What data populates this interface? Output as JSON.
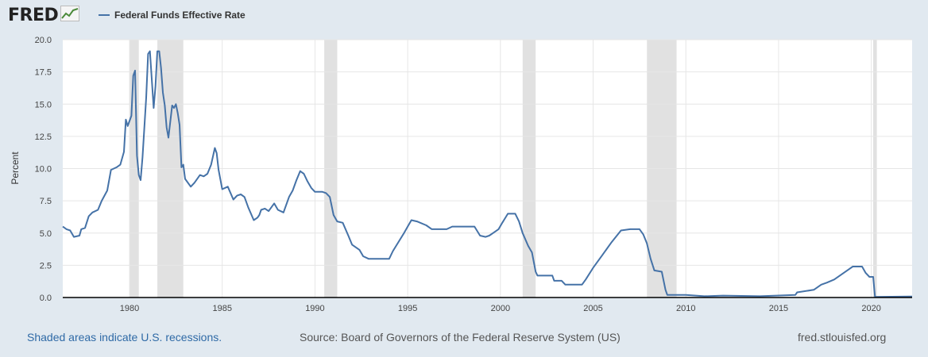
{
  "brand": {
    "logo_text": "FRED",
    "logo_icon": "trend-chart-icon"
  },
  "footer": {
    "recession_note": "Shaded areas indicate U.S. recessions.",
    "source": "Source: Board of Governors of the Federal Reserve System (US)",
    "url": "fred.stlouisfed.org"
  },
  "colors": {
    "series": "#4572a7",
    "recession": "#e1e1e1",
    "background": "#e1e9f0"
  },
  "chart_data": {
    "type": "line",
    "ylabel": "Percent",
    "xlim": [
      1976.4,
      2022.2
    ],
    "ylim": [
      0,
      20
    ],
    "x_ticks": [
      1980,
      1985,
      1990,
      1995,
      2000,
      2005,
      2010,
      2015,
      2020
    ],
    "y_ticks": [
      "0.0",
      "2.5",
      "5.0",
      "7.5",
      "10.0",
      "12.5",
      "15.0",
      "17.5",
      "20.0"
    ],
    "grid": "horizontal",
    "legend_position": "top-left",
    "recessions": [
      [
        1980.0,
        1980.5
      ],
      [
        1981.5,
        1982.9
      ],
      [
        1990.5,
        1991.2
      ],
      [
        2001.2,
        2001.9
      ],
      [
        2007.9,
        2009.5
      ],
      [
        2020.1,
        2020.3
      ]
    ],
    "series": [
      {
        "name": "Federal Funds Effective Rate",
        "points": [
          [
            1976.4,
            5.5
          ],
          [
            1976.6,
            5.3
          ],
          [
            1976.8,
            5.2
          ],
          [
            1977.0,
            4.7
          ],
          [
            1977.3,
            4.8
          ],
          [
            1977.4,
            5.3
          ],
          [
            1977.6,
            5.4
          ],
          [
            1977.8,
            6.3
          ],
          [
            1978.0,
            6.6
          ],
          [
            1978.3,
            6.8
          ],
          [
            1978.5,
            7.5
          ],
          [
            1978.8,
            8.3
          ],
          [
            1979.0,
            9.9
          ],
          [
            1979.3,
            10.1
          ],
          [
            1979.5,
            10.3
          ],
          [
            1979.7,
            11.3
          ],
          [
            1979.8,
            13.8
          ],
          [
            1979.9,
            13.3
          ],
          [
            1980.1,
            14.1
          ],
          [
            1980.2,
            17.2
          ],
          [
            1980.3,
            17.6
          ],
          [
            1980.4,
            11.0
          ],
          [
            1980.5,
            9.5
          ],
          [
            1980.6,
            9.1
          ],
          [
            1980.7,
            10.9
          ],
          [
            1980.9,
            15.5
          ],
          [
            1981.0,
            18.9
          ],
          [
            1981.1,
            19.1
          ],
          [
            1981.3,
            14.7
          ],
          [
            1981.4,
            16.4
          ],
          [
            1981.5,
            19.1
          ],
          [
            1981.6,
            19.1
          ],
          [
            1981.7,
            17.8
          ],
          [
            1981.8,
            15.9
          ],
          [
            1981.9,
            14.9
          ],
          [
            1982.0,
            13.2
          ],
          [
            1982.1,
            12.4
          ],
          [
            1982.3,
            14.9
          ],
          [
            1982.4,
            14.7
          ],
          [
            1982.5,
            15.0
          ],
          [
            1982.6,
            14.3
          ],
          [
            1982.7,
            13.4
          ],
          [
            1982.8,
            10.1
          ],
          [
            1982.9,
            10.3
          ],
          [
            1983.0,
            9.2
          ],
          [
            1983.3,
            8.6
          ],
          [
            1983.5,
            8.9
          ],
          [
            1983.8,
            9.5
          ],
          [
            1984.0,
            9.4
          ],
          [
            1984.2,
            9.6
          ],
          [
            1984.4,
            10.3
          ],
          [
            1984.6,
            11.6
          ],
          [
            1984.7,
            11.2
          ],
          [
            1984.8,
            9.9
          ],
          [
            1985.0,
            8.4
          ],
          [
            1985.3,
            8.6
          ],
          [
            1985.6,
            7.6
          ],
          [
            1985.8,
            7.9
          ],
          [
            1986.0,
            8.0
          ],
          [
            1986.2,
            7.8
          ],
          [
            1986.4,
            7.0
          ],
          [
            1986.7,
            6.0
          ],
          [
            1986.9,
            6.2
          ],
          [
            1987.0,
            6.4
          ],
          [
            1987.1,
            6.8
          ],
          [
            1987.3,
            6.9
          ],
          [
            1987.5,
            6.7
          ],
          [
            1987.8,
            7.3
          ],
          [
            1988.0,
            6.8
          ],
          [
            1988.3,
            6.6
          ],
          [
            1988.6,
            7.8
          ],
          [
            1988.8,
            8.3
          ],
          [
            1989.0,
            9.1
          ],
          [
            1989.2,
            9.8
          ],
          [
            1989.4,
            9.6
          ],
          [
            1989.6,
            9.0
          ],
          [
            1989.8,
            8.5
          ],
          [
            1990.0,
            8.2
          ],
          [
            1990.4,
            8.2
          ],
          [
            1990.6,
            8.1
          ],
          [
            1990.8,
            7.8
          ],
          [
            1991.0,
            6.4
          ],
          [
            1991.2,
            5.9
          ],
          [
            1991.5,
            5.8
          ],
          [
            1991.8,
            4.8
          ],
          [
            1992.0,
            4.1
          ],
          [
            1992.4,
            3.7
          ],
          [
            1992.6,
            3.2
          ],
          [
            1992.9,
            3.0
          ],
          [
            1993.2,
            3.0
          ],
          [
            1993.6,
            3.0
          ],
          [
            1994.0,
            3.0
          ],
          [
            1994.2,
            3.6
          ],
          [
            1994.5,
            4.3
          ],
          [
            1994.8,
            5.0
          ],
          [
            1995.0,
            5.5
          ],
          [
            1995.2,
            6.0
          ],
          [
            1995.5,
            5.9
          ],
          [
            1996.0,
            5.6
          ],
          [
            1996.3,
            5.3
          ],
          [
            1996.8,
            5.3
          ],
          [
            1997.1,
            5.3
          ],
          [
            1997.4,
            5.5
          ],
          [
            1997.8,
            5.5
          ],
          [
            1998.2,
            5.5
          ],
          [
            1998.6,
            5.5
          ],
          [
            1998.9,
            4.8
          ],
          [
            1999.2,
            4.7
          ],
          [
            1999.4,
            4.8
          ],
          [
            1999.6,
            5.0
          ],
          [
            1999.9,
            5.3
          ],
          [
            2000.1,
            5.8
          ],
          [
            2000.4,
            6.5
          ],
          [
            2000.8,
            6.5
          ],
          [
            2001.0,
            5.9
          ],
          [
            2001.2,
            5.0
          ],
          [
            2001.5,
            4.0
          ],
          [
            2001.7,
            3.5
          ],
          [
            2001.9,
            2.0
          ],
          [
            2002.0,
            1.7
          ],
          [
            2002.5,
            1.7
          ],
          [
            2002.8,
            1.7
          ],
          [
            2002.9,
            1.3
          ],
          [
            2003.3,
            1.3
          ],
          [
            2003.5,
            1.0
          ],
          [
            2004.0,
            1.0
          ],
          [
            2004.4,
            1.0
          ],
          [
            2004.6,
            1.4
          ],
          [
            2005.0,
            2.3
          ],
          [
            2005.5,
            3.3
          ],
          [
            2006.0,
            4.3
          ],
          [
            2006.5,
            5.2
          ],
          [
            2007.0,
            5.3
          ],
          [
            2007.5,
            5.3
          ],
          [
            2007.7,
            4.9
          ],
          [
            2007.9,
            4.2
          ],
          [
            2008.1,
            3.0
          ],
          [
            2008.3,
            2.1
          ],
          [
            2008.7,
            2.0
          ],
          [
            2008.9,
            0.6
          ],
          [
            2009.0,
            0.2
          ],
          [
            2010.0,
            0.2
          ],
          [
            2011.0,
            0.1
          ],
          [
            2012.0,
            0.15
          ],
          [
            2014.0,
            0.1
          ],
          [
            2015.9,
            0.2
          ],
          [
            2016.0,
            0.4
          ],
          [
            2016.9,
            0.6
          ],
          [
            2017.3,
            1.0
          ],
          [
            2017.6,
            1.15
          ],
          [
            2018.0,
            1.4
          ],
          [
            2018.4,
            1.8
          ],
          [
            2018.8,
            2.2
          ],
          [
            2019.0,
            2.4
          ],
          [
            2019.5,
            2.4
          ],
          [
            2019.7,
            1.9
          ],
          [
            2019.9,
            1.6
          ],
          [
            2020.1,
            1.6
          ],
          [
            2020.2,
            0.05
          ],
          [
            2022.2,
            0.08
          ]
        ]
      }
    ]
  }
}
